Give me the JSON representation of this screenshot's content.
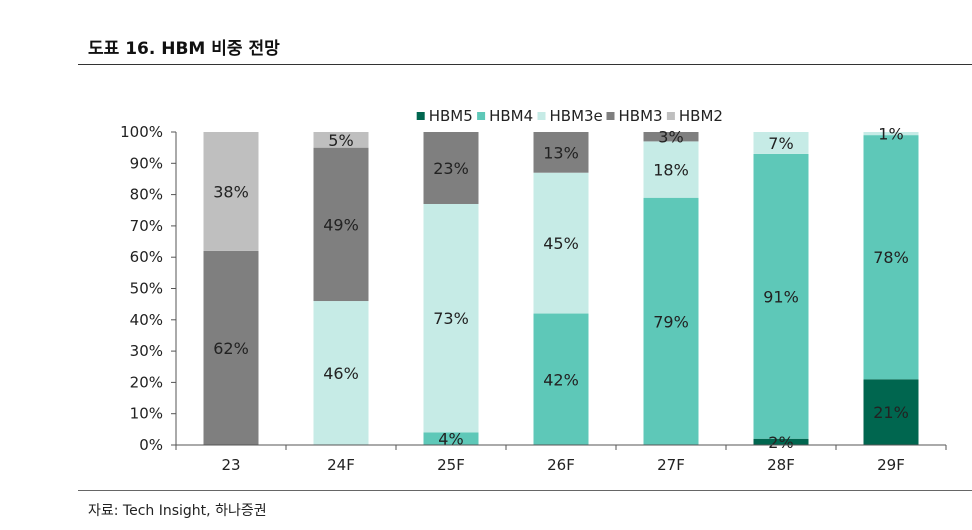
{
  "header": {
    "title": "도표 16. HBM 비중 전망"
  },
  "footer": {
    "source": "자료:   Tech Insight, 하나증권"
  },
  "chart_data": {
    "type": "bar",
    "stacked": true,
    "percent": true,
    "title": "",
    "xlabel": "",
    "ylabel": "",
    "ylim": [
      0,
      100
    ],
    "yticks": [
      "0%",
      "10%",
      "20%",
      "30%",
      "40%",
      "50%",
      "60%",
      "70%",
      "80%",
      "90%",
      "100%"
    ],
    "legend_position": "top",
    "categories": [
      "23",
      "24F",
      "25F",
      "26F",
      "27F",
      "28F",
      "29F"
    ],
    "series": [
      {
        "name": "HBM5",
        "color": "#00664f",
        "values": [
          0,
          0,
          0,
          0,
          0,
          2,
          21
        ],
        "labels": [
          "",
          "",
          "",
          "",
          "",
          "2%",
          "21%"
        ]
      },
      {
        "name": "HBM4",
        "color": "#5ec8b8",
        "values": [
          0,
          0,
          4,
          42,
          79,
          91,
          78
        ],
        "labels": [
          "",
          "",
          "4%",
          "42%",
          "79%",
          "91%",
          "78%"
        ]
      },
      {
        "name": "HBM3e",
        "color": "#c6ebe6",
        "values": [
          0,
          46,
          73,
          45,
          18,
          7,
          1
        ],
        "labels": [
          "",
          "46%",
          "73%",
          "45%",
          "18%",
          "7%",
          "1%"
        ]
      },
      {
        "name": "HBM3",
        "color": "#7f7f7f",
        "values": [
          62,
          49,
          23,
          13,
          3,
          0,
          0
        ],
        "labels": [
          "62%",
          "49%",
          "23%",
          "13%",
          "3%",
          "",
          ""
        ]
      },
      {
        "name": "HBM2",
        "color": "#bfbfbf",
        "values": [
          38,
          5,
          0,
          0,
          0,
          0,
          0
        ],
        "labels": [
          "38%",
          "5%",
          "",
          "",
          "",
          "",
          ""
        ]
      }
    ]
  }
}
